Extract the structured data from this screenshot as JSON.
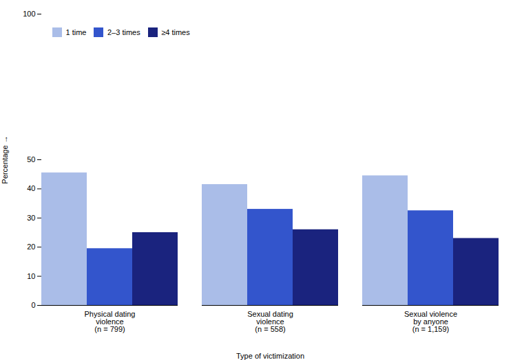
{
  "chart_data": {
    "type": "bar",
    "categories": [
      "Physical dating\nviolence\n(n = 799)",
      "Sexual dating\nviolence\n(n = 558)",
      "Sexual violence\nby anyone\n(n = 1,159)"
    ],
    "series": [
      {
        "name": "1 time",
        "values": [
          45.5,
          41.5,
          44.5
        ],
        "color": "#aabde8"
      },
      {
        "name": "2–3 times",
        "values": [
          19.5,
          33.0,
          32.5
        ],
        "color": "#3355cc"
      },
      {
        "name": "≥4 times",
        "values": [
          25.0,
          26.0,
          23.0
        ],
        "color": "#1a237e"
      }
    ],
    "xlabel": "Type of victimization",
    "ylabel": "Percentage",
    "ylim": [
      0,
      100
    ],
    "yticks": [
      0,
      10,
      20,
      30,
      40,
      50,
      100
    ],
    "grid": false,
    "legend": "upper left"
  }
}
